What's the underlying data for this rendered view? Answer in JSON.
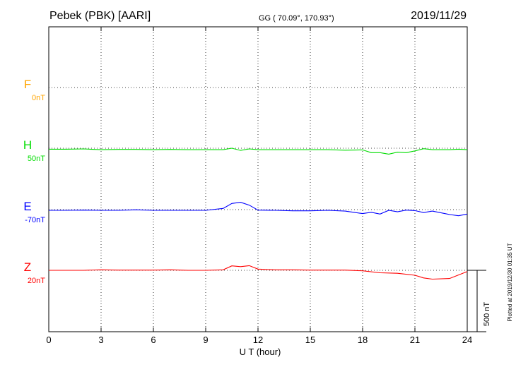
{
  "header": {
    "station": "Pebek (PBK)  [AARI]",
    "coords": "GG ( 70.09°, 170.93°)",
    "date": "2019/11/29"
  },
  "xaxis": {
    "label": "U T (hour)",
    "ticks": [
      "0",
      "3",
      "6",
      "9",
      "12",
      "15",
      "18",
      "21",
      "24"
    ]
  },
  "scale_bar": {
    "label": "500 nT",
    "value_nT": 500
  },
  "plotted_note": "Plotted at 2019/12/30 01:35 UT",
  "colors": {
    "F": "#ffa500",
    "H": "#00dd00",
    "E": "#0000ff",
    "Z": "#ff0000",
    "frame": "#000000"
  },
  "chart_data": {
    "type": "line",
    "x_range_hours": [
      0,
      24
    ],
    "grid": true,
    "series": [
      {
        "name": "F",
        "offset_label": "0nT",
        "color": "#ffa500",
        "points": []
      },
      {
        "name": "H",
        "offset_label": "50nT",
        "color": "#00dd00",
        "points": [
          [
            0,
            8
          ],
          [
            1,
            8
          ],
          [
            2,
            6
          ],
          [
            3,
            12
          ],
          [
            4,
            10
          ],
          [
            5,
            10
          ],
          [
            6,
            12
          ],
          [
            7,
            10
          ],
          [
            8,
            12
          ],
          [
            9,
            12
          ],
          [
            10,
            12
          ],
          [
            10.5,
            0
          ],
          [
            11,
            18
          ],
          [
            11.5,
            6
          ],
          [
            12,
            12
          ],
          [
            13,
            12
          ],
          [
            14,
            12
          ],
          [
            15,
            12
          ],
          [
            16,
            12
          ],
          [
            17,
            16
          ],
          [
            18,
            14
          ],
          [
            18.5,
            36
          ],
          [
            19,
            36
          ],
          [
            19.5,
            48
          ],
          [
            20,
            32
          ],
          [
            20.5,
            36
          ],
          [
            21,
            22
          ],
          [
            21.5,
            4
          ],
          [
            22,
            12
          ],
          [
            23,
            12
          ],
          [
            23.5,
            8
          ],
          [
            24,
            12
          ]
        ]
      },
      {
        "name": "E",
        "offset_label": "-70nT",
        "color": "#0000ff",
        "points": [
          [
            0,
            6
          ],
          [
            1,
            6
          ],
          [
            2,
            4
          ],
          [
            3,
            6
          ],
          [
            4,
            6
          ],
          [
            5,
            2
          ],
          [
            6,
            6
          ],
          [
            7,
            6
          ],
          [
            8,
            6
          ],
          [
            9,
            6
          ],
          [
            10,
            -10
          ],
          [
            10.5,
            -50
          ],
          [
            11,
            -60
          ],
          [
            11.5,
            -36
          ],
          [
            12,
            4
          ],
          [
            13,
            6
          ],
          [
            14,
            10
          ],
          [
            15,
            10
          ],
          [
            16,
            6
          ],
          [
            17,
            12
          ],
          [
            18,
            32
          ],
          [
            18.5,
            22
          ],
          [
            19,
            36
          ],
          [
            19.5,
            6
          ],
          [
            20,
            18
          ],
          [
            20.5,
            4
          ],
          [
            21,
            8
          ],
          [
            21.5,
            24
          ],
          [
            22,
            12
          ],
          [
            23,
            40
          ],
          [
            23.5,
            50
          ],
          [
            24,
            36
          ]
        ]
      },
      {
        "name": "Z",
        "offset_label": "20nT",
        "color": "#ff0000",
        "points": [
          [
            0,
            0
          ],
          [
            1,
            0
          ],
          [
            2,
            0
          ],
          [
            3,
            -4
          ],
          [
            4,
            -2
          ],
          [
            5,
            -2
          ],
          [
            6,
            -2
          ],
          [
            7,
            -4
          ],
          [
            8,
            0
          ],
          [
            9,
            0
          ],
          [
            10,
            -4
          ],
          [
            10.5,
            -36
          ],
          [
            11,
            -30
          ],
          [
            11.5,
            -38
          ],
          [
            12,
            -10
          ],
          [
            13,
            -4
          ],
          [
            14,
            -4
          ],
          [
            15,
            -2
          ],
          [
            16,
            -2
          ],
          [
            17,
            -2
          ],
          [
            18,
            4
          ],
          [
            19,
            20
          ],
          [
            20,
            24
          ],
          [
            21,
            40
          ],
          [
            21.5,
            62
          ],
          [
            22,
            72
          ],
          [
            23,
            66
          ],
          [
            24,
            10
          ]
        ]
      }
    ]
  }
}
